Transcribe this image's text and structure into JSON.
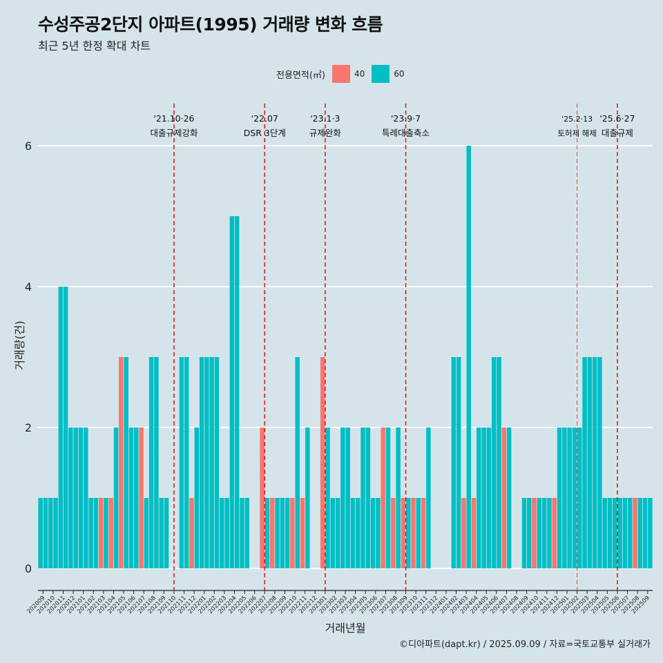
{
  "title": "수성주공2단지 아파트(1995) 거래량 변화 흐름",
  "subtitle": "최근 5년 한정 확대 차트",
  "legend": {
    "title": "전용면적(㎡)",
    "items": [
      {
        "label": "40",
        "color": "#f8766d"
      },
      {
        "label": "60",
        "color": "#00bfc4"
      }
    ]
  },
  "caption": "©디아파트(dapt.kr) / 2025.09.09 / 자료=국토교통부 실거래가",
  "chart_data": {
    "type": "bar",
    "stacked": true,
    "xlabel": "거래년월",
    "ylabel": "거래량(건)",
    "ylim": [
      0,
      6
    ],
    "yticks": [
      0,
      2,
      4,
      6
    ],
    "categories": [
      "202009",
      "202010",
      "202011",
      "202012",
      "202101",
      "202102",
      "202103",
      "202104",
      "202105",
      "202106",
      "202107",
      "202108",
      "202109",
      "202110",
      "202111",
      "202112",
      "202201",
      "202202",
      "202203",
      "202204",
      "202205",
      "202206",
      "202207",
      "202208",
      "202209",
      "202210",
      "202211",
      "202212",
      "202301",
      "202302",
      "202303",
      "202304",
      "202305",
      "202306",
      "202307",
      "202308",
      "202309",
      "202310",
      "202311",
      "202312",
      "202401",
      "202402",
      "202403",
      "202404",
      "202405",
      "202406",
      "202407",
      "202408",
      "202409",
      "202410",
      "202411",
      "202412",
      "202501",
      "202502",
      "202503",
      "202504",
      "202505",
      "202506",
      "202507",
      "202508",
      "202509"
    ],
    "bars": [
      {
        "month": "202009",
        "half": 0,
        "area": "60",
        "value": 1
      },
      {
        "month": "202009",
        "half": 1,
        "area": "60",
        "value": 1
      },
      {
        "month": "202010",
        "half": 0,
        "area": "60",
        "value": 1
      },
      {
        "month": "202010",
        "half": 1,
        "area": "60",
        "value": 1
      },
      {
        "month": "202011",
        "half": 0,
        "area": "60",
        "value": 4
      },
      {
        "month": "202011",
        "half": 1,
        "area": "60",
        "value": 4
      },
      {
        "month": "202012",
        "half": 0,
        "area": "60",
        "value": 2
      },
      {
        "month": "202012",
        "half": 1,
        "area": "60",
        "value": 2
      },
      {
        "month": "202101",
        "half": 0,
        "area": "60",
        "value": 2
      },
      {
        "month": "202101",
        "half": 1,
        "area": "60",
        "value": 2
      },
      {
        "month": "202102",
        "half": 0,
        "area": "60",
        "value": 1
      },
      {
        "month": "202102",
        "half": 1,
        "area": "60",
        "value": 1
      },
      {
        "month": "202103",
        "half": 0,
        "area": "40",
        "value": 1
      },
      {
        "month": "202103",
        "half": 1,
        "area": "60",
        "value": 1
      },
      {
        "month": "202104",
        "half": 0,
        "area": "40",
        "value": 1
      },
      {
        "month": "202104",
        "half": 1,
        "area": "60",
        "value": 2
      },
      {
        "month": "202105",
        "half": 0,
        "area": "40",
        "value": 3
      },
      {
        "month": "202105",
        "half": 1,
        "area": "60",
        "value": 3
      },
      {
        "month": "202106",
        "half": 0,
        "area": "60",
        "value": 2
      },
      {
        "month": "202106",
        "half": 1,
        "area": "60",
        "value": 2
      },
      {
        "month": "202107",
        "half": 0,
        "area": "40",
        "value": 2
      },
      {
        "month": "202107",
        "half": 1,
        "area": "60",
        "value": 1
      },
      {
        "month": "202108",
        "half": 0,
        "area": "60",
        "value": 3
      },
      {
        "month": "202108",
        "half": 1,
        "area": "60",
        "value": 3
      },
      {
        "month": "202109",
        "half": 0,
        "area": "60",
        "value": 1
      },
      {
        "month": "202109",
        "half": 1,
        "area": "60",
        "value": 1
      },
      {
        "month": "202111",
        "half": 0,
        "area": "60",
        "value": 3
      },
      {
        "month": "202111",
        "half": 1,
        "area": "60",
        "value": 3
      },
      {
        "month": "202112",
        "half": 0,
        "area": "40",
        "value": 1
      },
      {
        "month": "202112",
        "half": 1,
        "area": "60",
        "value": 2
      },
      {
        "month": "202201",
        "half": 0,
        "area": "60",
        "value": 3
      },
      {
        "month": "202201",
        "half": 1,
        "area": "60",
        "value": 3
      },
      {
        "month": "202202",
        "half": 0,
        "area": "60",
        "value": 3
      },
      {
        "month": "202202",
        "half": 1,
        "area": "60",
        "value": 3
      },
      {
        "month": "202203",
        "half": 0,
        "area": "60",
        "value": 1
      },
      {
        "month": "202203",
        "half": 1,
        "area": "60",
        "value": 1
      },
      {
        "month": "202204",
        "half": 0,
        "area": "60",
        "value": 5
      },
      {
        "month": "202204",
        "half": 1,
        "area": "60",
        "value": 5
      },
      {
        "month": "202205",
        "half": 0,
        "area": "60",
        "value": 1
      },
      {
        "month": "202205",
        "half": 1,
        "area": "60",
        "value": 1
      },
      {
        "month": "202207",
        "half": 0,
        "area": "40",
        "value": 2
      },
      {
        "month": "202207",
        "half": 1,
        "area": "60",
        "value": 1
      },
      {
        "month": "202208",
        "half": 0,
        "area": "40",
        "value": 1
      },
      {
        "month": "202208",
        "half": 1,
        "area": "60",
        "value": 1
      },
      {
        "month": "202209",
        "half": 0,
        "area": "60",
        "value": 1
      },
      {
        "month": "202209",
        "half": 1,
        "area": "60",
        "value": 1
      },
      {
        "month": "202210",
        "half": 0,
        "area": "40",
        "value": 1
      },
      {
        "month": "202210",
        "half": 1,
        "area": "60",
        "value": 3
      },
      {
        "month": "202211",
        "half": 0,
        "area": "40",
        "value": 1
      },
      {
        "month": "202211",
        "half": 1,
        "area": "60",
        "value": 2
      },
      {
        "month": "202301",
        "half": 0,
        "area": "40",
        "value": 3
      },
      {
        "month": "202301",
        "half": 1,
        "area": "60",
        "value": 2
      },
      {
        "month": "202302",
        "half": 0,
        "area": "60",
        "value": 1
      },
      {
        "month": "202302",
        "half": 1,
        "area": "60",
        "value": 1
      },
      {
        "month": "202303",
        "half": 0,
        "area": "60",
        "value": 2
      },
      {
        "month": "202303",
        "half": 1,
        "area": "60",
        "value": 2
      },
      {
        "month": "202304",
        "half": 0,
        "area": "60",
        "value": 1
      },
      {
        "month": "202304",
        "half": 1,
        "area": "60",
        "value": 1
      },
      {
        "month": "202305",
        "half": 0,
        "area": "60",
        "value": 2
      },
      {
        "month": "202305",
        "half": 1,
        "area": "60",
        "value": 2
      },
      {
        "month": "202306",
        "half": 0,
        "area": "60",
        "value": 1
      },
      {
        "month": "202306",
        "half": 1,
        "area": "60",
        "value": 1
      },
      {
        "month": "202307",
        "half": 0,
        "area": "40",
        "value": 2
      },
      {
        "month": "202307",
        "half": 1,
        "area": "60",
        "value": 2
      },
      {
        "month": "202308",
        "half": 0,
        "area": "40",
        "value": 1
      },
      {
        "month": "202308",
        "half": 1,
        "area": "60",
        "value": 2
      },
      {
        "month": "202309",
        "half": 0,
        "area": "40",
        "value": 1
      },
      {
        "month": "202309",
        "half": 1,
        "area": "60",
        "value": 1
      },
      {
        "month": "202310",
        "half": 0,
        "area": "40",
        "value": 1
      },
      {
        "month": "202310",
        "half": 1,
        "area": "60",
        "value": 1
      },
      {
        "month": "202311",
        "half": 0,
        "area": "40",
        "value": 1
      },
      {
        "month": "202311",
        "half": 1,
        "area": "60",
        "value": 2
      },
      {
        "month": "202402",
        "half": 0,
        "area": "60",
        "value": 3
      },
      {
        "month": "202402",
        "half": 1,
        "area": "60",
        "value": 3
      },
      {
        "month": "202403",
        "half": 0,
        "area": "40",
        "value": 1
      },
      {
        "month": "202403",
        "half": 1,
        "area": "60",
        "value": 6
      },
      {
        "month": "202404",
        "half": 0,
        "area": "40",
        "value": 1
      },
      {
        "month": "202404",
        "half": 1,
        "area": "60",
        "value": 2
      },
      {
        "month": "202405",
        "half": 0,
        "area": "60",
        "value": 2
      },
      {
        "month": "202405",
        "half": 1,
        "area": "60",
        "value": 2
      },
      {
        "month": "202406",
        "half": 0,
        "area": "60",
        "value": 3
      },
      {
        "month": "202406",
        "half": 1,
        "area": "60",
        "value": 3
      },
      {
        "month": "202407",
        "half": 0,
        "area": "40",
        "value": 2
      },
      {
        "month": "202407",
        "half": 1,
        "area": "60",
        "value": 2
      },
      {
        "month": "202409",
        "half": 0,
        "area": "60",
        "value": 1
      },
      {
        "month": "202409",
        "half": 1,
        "area": "60",
        "value": 1
      },
      {
        "month": "202410",
        "half": 0,
        "area": "40",
        "value": 1
      },
      {
        "month": "202410",
        "half": 1,
        "area": "60",
        "value": 1
      },
      {
        "month": "202411",
        "half": 0,
        "area": "60",
        "value": 1
      },
      {
        "month": "202411",
        "half": 1,
        "area": "60",
        "value": 1
      },
      {
        "month": "202412",
        "half": 0,
        "area": "40",
        "value": 1
      },
      {
        "month": "202412",
        "half": 1,
        "area": "60",
        "value": 2
      },
      {
        "month": "202501",
        "half": 0,
        "area": "60",
        "value": 2
      },
      {
        "month": "202501",
        "half": 1,
        "area": "60",
        "value": 2
      },
      {
        "month": "202502",
        "half": 0,
        "area": "60",
        "value": 2
      },
      {
        "month": "202502",
        "half": 1,
        "area": "60",
        "value": 2
      },
      {
        "month": "202503",
        "half": 0,
        "area": "60",
        "value": 3
      },
      {
        "month": "202503",
        "half": 1,
        "area": "60",
        "value": 3
      },
      {
        "month": "202504",
        "half": 0,
        "area": "60",
        "value": 3
      },
      {
        "month": "202504",
        "half": 1,
        "area": "60",
        "value": 3
      },
      {
        "month": "202505",
        "half": 0,
        "area": "60",
        "value": 1
      },
      {
        "month": "202505",
        "half": 1,
        "area": "60",
        "value": 1
      },
      {
        "month": "202506",
        "half": 0,
        "area": "60",
        "value": 1
      },
      {
        "month": "202506",
        "half": 1,
        "area": "60",
        "value": 1
      },
      {
        "month": "202507",
        "half": 0,
        "area": "60",
        "value": 1
      },
      {
        "month": "202507",
        "half": 1,
        "area": "60",
        "value": 1
      },
      {
        "month": "202508",
        "half": 0,
        "area": "40",
        "value": 1
      },
      {
        "month": "202508",
        "half": 1,
        "area": "60",
        "value": 1
      },
      {
        "month": "202509",
        "half": 0,
        "area": "60",
        "value": 1
      },
      {
        "month": "202509",
        "half": 1,
        "area": "60",
        "value": 1
      }
    ],
    "events": [
      {
        "month": "202110",
        "date": "'21.10·26",
        "label": "대출규제강화"
      },
      {
        "month": "202207",
        "date": "'22.07",
        "label": "DSR 3단계"
      },
      {
        "month": "202301",
        "date": "'23.1·3",
        "label": "규제완화"
      },
      {
        "month": "202309",
        "date": "'23.9·7",
        "label": "특례대출축소"
      },
      {
        "month": "202502",
        "date": "'25.2·13",
        "label": "토허제 해제",
        "faint": true
      },
      {
        "month": "202506",
        "date": "'25.6·27",
        "label": "대출규제"
      }
    ]
  }
}
